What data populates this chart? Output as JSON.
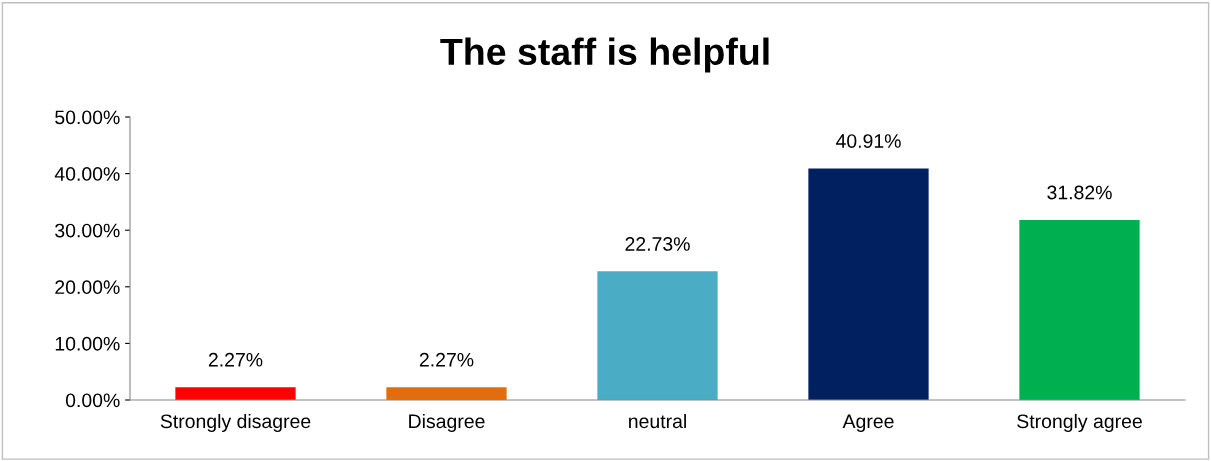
{
  "chart_data": {
    "type": "bar",
    "title": "The staff is helpful",
    "categories": [
      "Strongly disagree",
      "Disagree",
      "neutral",
      "Agree",
      "Strongly agree"
    ],
    "values": [
      2.27,
      2.27,
      22.73,
      40.91,
      31.82
    ],
    "colors": [
      "#ff0000",
      "#e46c0a",
      "#4bacc6",
      "#002060",
      "#00b050"
    ],
    "value_labels": [
      "2.27%",
      "2.27%",
      "22.73%",
      "40.91%",
      "31.82%"
    ],
    "ylim": [
      0,
      50
    ],
    "yticks": [
      {
        "value": 0,
        "label": "0.00%"
      },
      {
        "value": 10,
        "label": "10.00%"
      },
      {
        "value": 20,
        "label": "20.00%"
      },
      {
        "value": 30,
        "label": "30.00%"
      },
      {
        "value": 40,
        "label": "40.00%"
      },
      {
        "value": 50,
        "label": "50.00%"
      }
    ],
    "grid": false,
    "legend": false
  }
}
